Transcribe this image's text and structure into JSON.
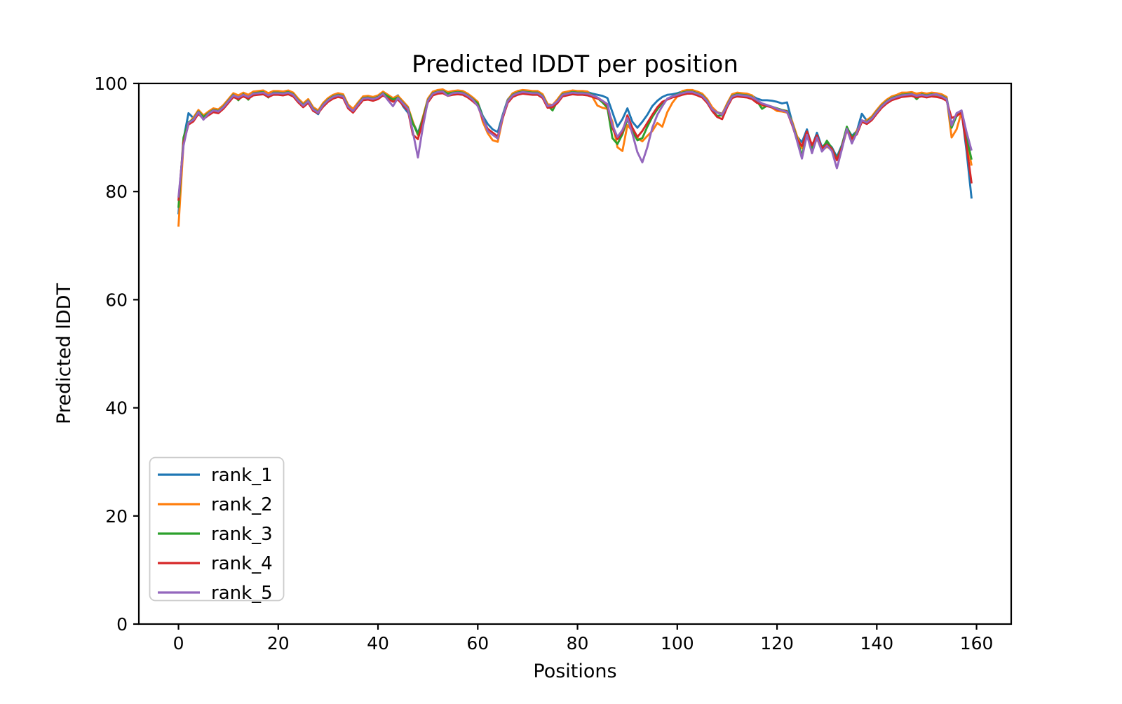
{
  "colors": {
    "background": "#ffffff",
    "text": "#000000",
    "spine": "#000000",
    "legend_border": "#cccccc",
    "legend_bg": "#ffffff"
  },
  "chart_data": {
    "type": "line",
    "title": "Predicted lDDT per position",
    "xlabel": "Positions",
    "ylabel": "Predicted lDDT",
    "xlim": [
      -7.95,
      166.95
    ],
    "ylim": [
      0,
      100
    ],
    "x_ticks": [
      0,
      20,
      40,
      60,
      80,
      100,
      120,
      140,
      160
    ],
    "y_ticks": [
      0,
      20,
      40,
      60,
      80,
      100
    ],
    "grid": false,
    "legend_position": "lower left",
    "x_start": 0,
    "x_step": 1,
    "series": [
      {
        "name": "rank_1",
        "color": "#1f77b4",
        "values": [
          75.8,
          89.7,
          94.5,
          93.6,
          95.0,
          94.0,
          94.7,
          95.3,
          95.1,
          95.9,
          97.0,
          98.1,
          97.7,
          98.2,
          97.8,
          98.4,
          98.5,
          98.6,
          98.1,
          98.5,
          98.5,
          98.4,
          98.6,
          98.2,
          97.1,
          96.2,
          97.0,
          95.0,
          94.3,
          96.3,
          97.2,
          97.8,
          98.1,
          97.9,
          96.0,
          95.2,
          96.4,
          97.5,
          97.6,
          97.4,
          97.7,
          98.4,
          97.8,
          97.2,
          97.8,
          95.8,
          94.6,
          92.8,
          90.8,
          93.7,
          97.1,
          98.4,
          98.7,
          98.8,
          98.3,
          98.5,
          98.6,
          98.5,
          98.0,
          97.3,
          96.5,
          94.0,
          92.5,
          91.5,
          91.0,
          94.2,
          97.0,
          98.1,
          98.5,
          98.7,
          98.6,
          98.5,
          98.5,
          97.9,
          96.1,
          96.0,
          97.0,
          98.2,
          98.4,
          98.6,
          98.5,
          98.5,
          98.4,
          98.1,
          97.9,
          97.7,
          97.3,
          94.7,
          92.0,
          93.4,
          95.4,
          92.9,
          91.8,
          92.9,
          94.2,
          95.8,
          96.8,
          97.5,
          97.9,
          98.0,
          98.2,
          98.5,
          98.7,
          98.7,
          98.4,
          98.0,
          97.0,
          95.5,
          94.7,
          94.4,
          96.2,
          97.9,
          98.2,
          98.1,
          98.0,
          97.7,
          97.2,
          96.9,
          96.9,
          96.8,
          96.6,
          96.3,
          96.5,
          93.0,
          90.2,
          89.1,
          91.5,
          88.3,
          90.9,
          88.2,
          89.1,
          88.2,
          86.4,
          88.6,
          91.8,
          90.3,
          91.2,
          94.4,
          93.1,
          93.8,
          95.0,
          96.1,
          96.9,
          97.5,
          97.8,
          98.1,
          98.2,
          98.3,
          98.0,
          98.2,
          98.0,
          98.2,
          98.1,
          97.9,
          97.4,
          92.5,
          93.9,
          94.8,
          87.5,
          78.7
        ]
      },
      {
        "name": "rank_2",
        "color": "#ff7f0e",
        "values": [
          73.5,
          88.8,
          92.6,
          93.7,
          95.1,
          94.1,
          94.8,
          95.4,
          95.2,
          96.0,
          97.1,
          98.2,
          97.8,
          98.3,
          97.9,
          98.5,
          98.6,
          98.7,
          98.2,
          98.6,
          98.6,
          98.5,
          98.7,
          98.3,
          97.2,
          96.3,
          97.1,
          95.6,
          95.0,
          96.4,
          97.3,
          97.9,
          98.2,
          98.0,
          96.1,
          95.3,
          96.5,
          97.6,
          97.7,
          97.5,
          97.8,
          98.5,
          97.9,
          97.3,
          97.7,
          96.7,
          95.7,
          92.9,
          90.4,
          93.8,
          97.2,
          98.5,
          98.8,
          98.9,
          98.4,
          98.6,
          98.7,
          98.6,
          98.1,
          97.4,
          96.6,
          92.9,
          90.8,
          89.5,
          89.2,
          93.5,
          96.9,
          98.2,
          98.6,
          98.8,
          98.7,
          98.6,
          98.6,
          98.0,
          96.2,
          96.0,
          97.1,
          98.3,
          98.5,
          98.7,
          98.6,
          98.6,
          98.5,
          97.5,
          95.9,
          95.5,
          95.3,
          92.9,
          88.2,
          87.5,
          92.3,
          91.2,
          89.9,
          89.3,
          90.3,
          91.2,
          92.7,
          92.0,
          94.7,
          96.4,
          97.6,
          98.6,
          98.8,
          98.8,
          98.5,
          98.1,
          97.1,
          95.6,
          94.7,
          94.3,
          96.3,
          98.0,
          98.3,
          98.2,
          98.1,
          97.8,
          96.7,
          95.9,
          95.9,
          95.5,
          94.9,
          94.8,
          94.6,
          93.1,
          90.3,
          88.0,
          90.3,
          87.8,
          89.8,
          87.6,
          88.3,
          87.7,
          86.1,
          88.0,
          91.3,
          89.6,
          91.3,
          92.8,
          93.2,
          93.9,
          95.1,
          96.2,
          97.0,
          97.6,
          97.9,
          98.3,
          98.3,
          98.4,
          98.1,
          98.3,
          98.1,
          98.3,
          98.2,
          98.0,
          97.5,
          90.0,
          91.5,
          94.7,
          89.5,
          84.8
        ]
      },
      {
        "name": "rank_3",
        "color": "#2ca02c",
        "values": [
          77.0,
          90.0,
          92.8,
          93.4,
          94.8,
          93.8,
          94.5,
          95.1,
          94.9,
          95.7,
          96.8,
          97.9,
          96.9,
          98.0,
          97.0,
          98.2,
          98.3,
          98.4,
          97.4,
          98.3,
          98.3,
          98.2,
          98.4,
          98.0,
          96.9,
          96.0,
          96.8,
          95.3,
          94.7,
          96.1,
          97.0,
          97.6,
          97.9,
          97.7,
          95.8,
          94.7,
          96.2,
          97.3,
          97.4,
          97.2,
          97.5,
          98.2,
          97.6,
          97.0,
          97.4,
          96.4,
          95.4,
          92.6,
          90.6,
          93.5,
          96.9,
          98.2,
          98.5,
          98.6,
          98.1,
          98.3,
          98.4,
          98.3,
          97.8,
          97.1,
          96.3,
          93.8,
          91.3,
          90.7,
          90.0,
          94.0,
          96.8,
          97.9,
          98.3,
          98.5,
          98.4,
          98.3,
          98.3,
          97.7,
          95.9,
          95.0,
          96.8,
          98.0,
          98.2,
          98.4,
          98.3,
          98.3,
          98.2,
          97.9,
          97.3,
          96.5,
          95.5,
          89.9,
          88.8,
          90.6,
          93.4,
          91.2,
          89.5,
          89.9,
          92.0,
          93.8,
          95.2,
          96.4,
          97.1,
          97.6,
          98.0,
          98.3,
          98.5,
          98.5,
          98.2,
          97.8,
          96.8,
          95.0,
          94.0,
          94.1,
          96.0,
          97.7,
          98.0,
          97.9,
          97.8,
          97.5,
          96.7,
          95.3,
          95.9,
          95.7,
          95.4,
          95.1,
          94.9,
          92.8,
          89.8,
          86.6,
          90.7,
          88.0,
          90.2,
          87.8,
          89.4,
          88.0,
          86.0,
          88.4,
          92.0,
          90.0,
          91.0,
          93.1,
          92.9,
          93.6,
          94.8,
          95.9,
          96.7,
          97.3,
          97.6,
          97.9,
          98.0,
          98.1,
          97.1,
          98.0,
          97.8,
          98.0,
          97.9,
          97.7,
          97.2,
          91.8,
          94.0,
          94.9,
          90.0,
          85.9
        ]
      },
      {
        "name": "rank_4",
        "color": "#d62728",
        "values": [
          78.3,
          89.1,
          92.4,
          93.0,
          94.4,
          93.4,
          94.1,
          94.7,
          94.5,
          95.3,
          96.4,
          97.5,
          97.1,
          97.6,
          97.2,
          97.8,
          97.9,
          98.0,
          97.5,
          97.9,
          97.9,
          97.8,
          98.0,
          97.6,
          96.5,
          95.6,
          96.4,
          94.9,
          94.5,
          95.7,
          96.6,
          97.2,
          97.5,
          97.3,
          95.4,
          94.6,
          95.8,
          96.9,
          97.0,
          96.8,
          97.1,
          97.8,
          97.2,
          96.6,
          97.0,
          96.0,
          95.0,
          90.5,
          89.7,
          93.1,
          96.5,
          97.8,
          98.1,
          98.2,
          97.7,
          97.9,
          98.0,
          97.9,
          97.4,
          96.7,
          95.9,
          93.4,
          91.6,
          90.9,
          90.2,
          93.6,
          96.4,
          97.5,
          97.9,
          98.1,
          98.0,
          97.9,
          97.9,
          97.3,
          95.5,
          95.6,
          96.4,
          97.6,
          97.8,
          98.0,
          97.9,
          97.9,
          97.8,
          97.5,
          97.2,
          96.8,
          95.9,
          91.8,
          89.7,
          91.0,
          94.1,
          91.8,
          90.1,
          91.2,
          92.7,
          94.2,
          95.6,
          96.6,
          97.0,
          97.4,
          97.6,
          97.9,
          98.1,
          98.1,
          97.8,
          97.4,
          96.4,
          94.9,
          93.8,
          93.4,
          95.6,
          97.3,
          97.6,
          97.5,
          97.4,
          97.1,
          96.4,
          96.1,
          95.8,
          95.6,
          95.2,
          95.0,
          94.8,
          92.4,
          89.6,
          88.4,
          91.1,
          88.6,
          90.4,
          88.0,
          88.7,
          87.9,
          85.8,
          88.2,
          91.5,
          89.8,
          90.6,
          92.9,
          92.5,
          93.2,
          94.4,
          95.5,
          96.3,
          96.9,
          97.2,
          97.5,
          97.6,
          97.7,
          97.4,
          97.6,
          97.4,
          97.6,
          97.5,
          97.3,
          96.8,
          93.6,
          94.0,
          94.6,
          88.5,
          81.5
        ]
      },
      {
        "name": "rank_5",
        "color": "#9467bd",
        "values": [
          78.9,
          88.5,
          92.7,
          93.3,
          94.7,
          93.3,
          94.4,
          95.0,
          94.8,
          95.6,
          96.7,
          97.8,
          97.4,
          97.9,
          97.5,
          98.1,
          98.2,
          98.3,
          97.8,
          98.2,
          98.2,
          98.1,
          98.3,
          97.9,
          96.8,
          95.9,
          96.7,
          95.2,
          94.6,
          96.0,
          96.9,
          97.5,
          97.8,
          97.6,
          95.7,
          94.9,
          96.1,
          97.2,
          97.3,
          97.1,
          97.4,
          98.1,
          96.9,
          95.8,
          97.3,
          96.3,
          95.3,
          91.0,
          86.3,
          92.0,
          96.8,
          98.1,
          98.4,
          98.5,
          97.7,
          98.2,
          98.3,
          98.2,
          97.7,
          97.0,
          95.8,
          93.7,
          91.2,
          90.5,
          89.8,
          93.9,
          96.7,
          97.8,
          98.2,
          98.4,
          98.3,
          98.2,
          98.2,
          97.6,
          95.8,
          96.0,
          96.7,
          97.9,
          98.1,
          98.3,
          98.2,
          98.2,
          98.1,
          97.8,
          97.4,
          96.8,
          96.2,
          92.3,
          90.1,
          91.4,
          93.6,
          90.7,
          87.3,
          85.4,
          88.2,
          91.8,
          94.2,
          95.8,
          97.2,
          97.6,
          97.9,
          98.2,
          98.4,
          98.4,
          98.1,
          97.7,
          96.7,
          95.2,
          94.6,
          94.2,
          95.9,
          97.6,
          97.9,
          97.8,
          97.7,
          97.4,
          96.9,
          96.3,
          96.0,
          95.7,
          95.3,
          95.0,
          94.7,
          92.7,
          89.4,
          86.1,
          90.5,
          87.1,
          90.0,
          87.4,
          88.5,
          87.5,
          84.3,
          87.8,
          91.6,
          88.9,
          90.9,
          93.2,
          92.8,
          93.5,
          94.7,
          95.8,
          96.6,
          97.2,
          97.5,
          97.8,
          97.9,
          98.0,
          97.7,
          97.9,
          97.7,
          97.9,
          98.0,
          97.6,
          97.1,
          92.2,
          94.5,
          95.0,
          91.0,
          87.6
        ]
      }
    ]
  }
}
